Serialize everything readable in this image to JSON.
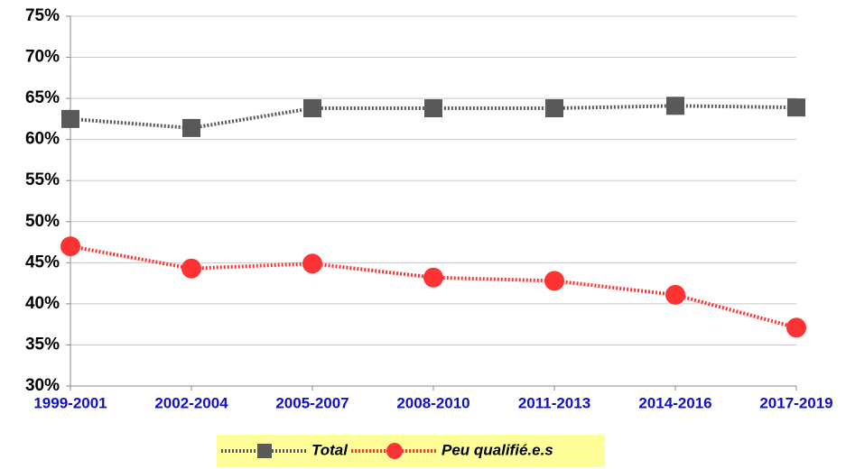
{
  "chart_data": {
    "type": "line",
    "categories": [
      "1999-2001",
      "2002-2004",
      "2005-2007",
      "2008-2010",
      "2011-2013",
      "2014-2016",
      "2017-2019"
    ],
    "series": [
      {
        "name": "Total",
        "color": "#595959",
        "marker": "square",
        "values": [
          62.5,
          61.4,
          63.8,
          63.8,
          63.8,
          64.1,
          63.9
        ]
      },
      {
        "name": "Peu qualifié.e.s",
        "color": "#ff3333",
        "marker": "circle",
        "values": [
          47.0,
          44.3,
          44.9,
          43.2,
          42.8,
          41.1,
          37.1
        ]
      }
    ],
    "ylim": [
      30,
      75
    ],
    "yticks": [
      {
        "value": 30,
        "label": "30%"
      },
      {
        "value": 35,
        "label": "35%"
      },
      {
        "value": 40,
        "label": "40%"
      },
      {
        "value": 45,
        "label": "45%"
      },
      {
        "value": 50,
        "label": "50%"
      },
      {
        "value": 55,
        "label": "55%"
      },
      {
        "value": 60,
        "label": "60%"
      },
      {
        "value": 65,
        "label": "65%"
      },
      {
        "value": 70,
        "label": "70%"
      },
      {
        "value": 75,
        "label": "75%"
      }
    ],
    "grid": true,
    "legend": "bottom"
  }
}
